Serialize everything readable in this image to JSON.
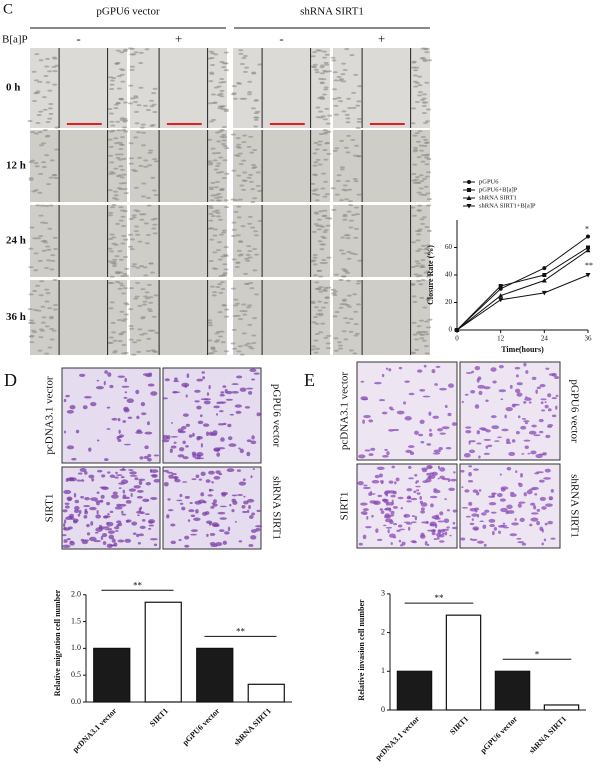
{
  "panel_labels": [
    "C",
    "D",
    "E"
  ],
  "scratch_assay": {
    "groups": [
      "pGPU6 vector",
      "shRNA SIRT1"
    ],
    "treatment_label": "B[a]P",
    "treatments": [
      "-",
      "+",
      "-",
      "+"
    ],
    "timepoints": [
      "0 h",
      "12 h",
      "24 h",
      "36 h"
    ]
  },
  "transwell": {
    "migration": {
      "left_labels": [
        "pcDNA3.1 vector",
        "SIRT1"
      ],
      "right_labels": [
        "pGPU6 vector",
        "shRNA SIRT1"
      ]
    },
    "invasion": {
      "left_labels": [
        "pcDNA3.1 vector",
        "SIRT1"
      ],
      "right_labels": [
        "pGPU6 vector",
        "shRNA SIRT1"
      ]
    }
  },
  "chart_data": [
    {
      "type": "line",
      "xlabel": "Time(hours)",
      "ylabel": "Closure Rate (%)",
      "x": [
        0,
        12,
        24,
        36
      ],
      "xlim": [
        0,
        36
      ],
      "xticks": [
        0,
        12,
        24,
        36
      ],
      "ylim": [
        0,
        80
      ],
      "yticks": [
        0,
        20,
        40,
        60
      ],
      "series": [
        {
          "name": "pGPU6",
          "color": "#111111",
          "values": [
            0,
            30,
            45,
            68
          ]
        },
        {
          "name": "pGPU6+B[a]P",
          "color": "#111111",
          "values": [
            0,
            32,
            40,
            60
          ]
        },
        {
          "name": "shRNA SIRT1",
          "color": "#111111",
          "values": [
            0,
            25,
            36,
            58
          ]
        },
        {
          "name": "shRNA SIRT1+B[a]P",
          "color": "#111111",
          "values": [
            0,
            22,
            27,
            40
          ]
        }
      ],
      "annotations": [
        "*",
        "**"
      ]
    },
    {
      "type": "bar",
      "ylabel": "Relative migration cell number",
      "categories": [
        "pcDNA3.1 vector",
        "SIRT1",
        "pGPU6 vector",
        "shRNA SIRT1"
      ],
      "values": [
        1.0,
        1.86,
        1.0,
        0.33
      ],
      "colors": [
        "#1a1a1a",
        "#ffffff",
        "#1a1a1a",
        "#ffffff"
      ],
      "ylim": [
        0,
        2.2
      ],
      "yticks": [
        {
          "value": 0,
          "label": "0.0"
        },
        {
          "value": 0.5,
          "label": "0.5"
        },
        {
          "value": 1,
          "label": "1.0"
        },
        {
          "value": 1.5,
          "label": "1.5"
        },
        {
          "value": 2,
          "label": "2.0"
        }
      ],
      "annotations": [
        "**",
        "**"
      ]
    },
    {
      "type": "bar",
      "ylabel": "Relative invasion cell number",
      "categories": [
        "pcDNA3.1 vector",
        "SIRT1",
        "pGPU6 vector",
        "shRNA SIRT1"
      ],
      "values": [
        1.0,
        2.45,
        1.0,
        0.13
      ],
      "colors": [
        "#1a1a1a",
        "#ffffff",
        "#1a1a1a",
        "#ffffff"
      ],
      "ylim": [
        0,
        3.1
      ],
      "yticks": [
        0,
        1,
        2,
        3
      ],
      "annotations": [
        "**",
        "*"
      ]
    }
  ]
}
